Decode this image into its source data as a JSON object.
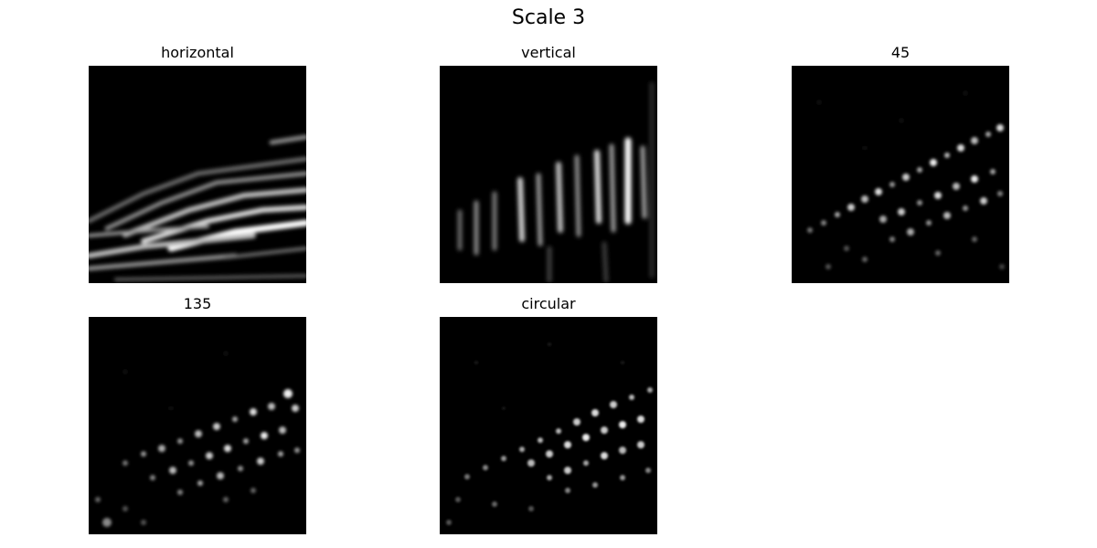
{
  "figure": {
    "title": "Scale 3",
    "panels": [
      {
        "title": "horizontal"
      },
      {
        "title": "vertical"
      },
      {
        "title": "45"
      },
      {
        "title": "135"
      },
      {
        "title": "circular"
      }
    ]
  }
}
